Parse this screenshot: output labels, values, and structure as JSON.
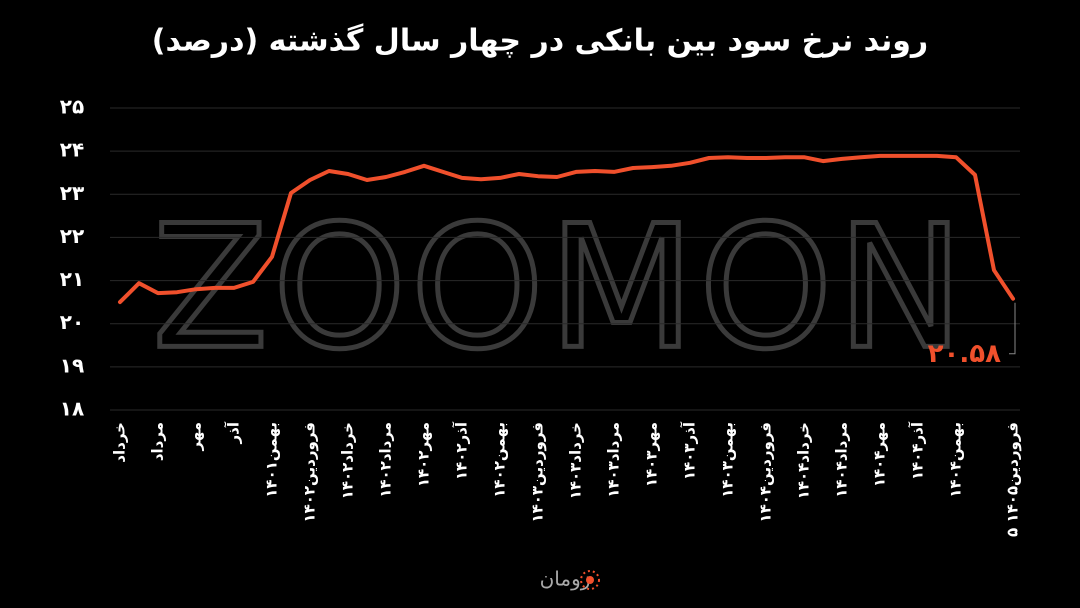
{
  "chart_data": {
    "type": "line",
    "title": "روند نرخ سود بین بانکی در چهار سال گذشته (درصد)",
    "watermark": "ZOOMON",
    "logo_text": "زومان",
    "color": "#f0502c",
    "grid": true,
    "ylim": [
      18,
      25
    ],
    "yticks": [
      {
        "value": 18,
        "label": "۱۸"
      },
      {
        "value": 19,
        "label": "۱۹"
      },
      {
        "value": 20,
        "label": "۲۰"
      },
      {
        "value": 21,
        "label": "۲۱"
      },
      {
        "value": 22,
        "label": "۲۲"
      },
      {
        "value": 23,
        "label": "۲۳"
      },
      {
        "value": 24,
        "label": "۲۴"
      },
      {
        "value": 25,
        "label": "۲۵"
      }
    ],
    "categories": [
      "خرداد",
      null,
      "مرداد",
      null,
      "مهر",
      null,
      "آذر",
      null,
      "بهمن۱۴۰۱",
      null,
      "فروردین۱۴۰۲",
      null,
      "خرداد۱۴۰۲",
      null,
      "مرداد۱۴۰۲",
      null,
      "مهر۱۴۰۲",
      null,
      "آذر۱۴۰۲",
      null,
      "بهمن۱۴۰۲",
      null,
      "فروردین۱۴۰۳",
      null,
      "خرداد۱۴۰۳",
      null,
      "مرداد۱۴۰۳",
      null,
      "مهر۱۴۰۳",
      null,
      "آذر۱۴۰۳",
      null,
      "بهمن۱۴۰۳",
      null,
      "فروردین۱۴۰۴",
      null,
      "خرداد۱۴۰۴",
      null,
      "مرداد۱۴۰۴",
      null,
      "مهر۱۴۰۴",
      null,
      "آذر۱۴۰۴",
      null,
      "بهمن۱۴۰۴",
      null,
      null,
      "۵ فروردین۱۴۰۵"
    ],
    "values": [
      20.5,
      20.94,
      20.71,
      20.73,
      20.8,
      20.83,
      20.83,
      20.97,
      21.55,
      23.03,
      23.33,
      23.54,
      23.47,
      23.33,
      23.4,
      23.52,
      23.66,
      23.52,
      23.38,
      23.35,
      23.38,
      23.47,
      23.42,
      23.4,
      23.52,
      23.54,
      23.52,
      23.61,
      23.63,
      23.66,
      23.73,
      23.84,
      23.86,
      23.84,
      23.84,
      23.86,
      23.86,
      23.77,
      23.82,
      23.86,
      23.89,
      23.89,
      23.89,
      23.89,
      23.86,
      23.45,
      21.24,
      20.58
    ],
    "value_labels": [
      null,
      null,
      null,
      null,
      null,
      null,
      null,
      null,
      null,
      null,
      null,
      null,
      null,
      null,
      null,
      null,
      null,
      null,
      null,
      null,
      null,
      null,
      null,
      null,
      null,
      null,
      null,
      null,
      null,
      null,
      null,
      null,
      null,
      null,
      null,
      null,
      null,
      null,
      null,
      null,
      null,
      null,
      null,
      null,
      null,
      null,
      null,
      "۲۰.۵۸"
    ]
  }
}
